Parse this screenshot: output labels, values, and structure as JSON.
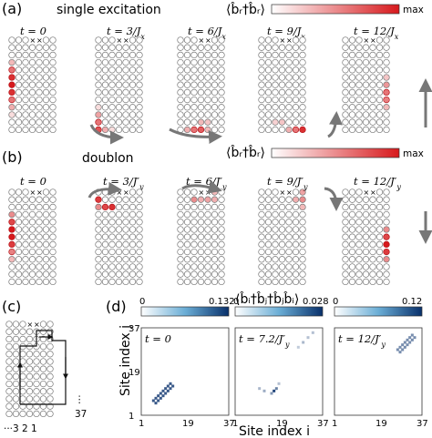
{
  "panels": {
    "a": {
      "label": "(a)",
      "title": "single excitation",
      "colorbar_label": "⟨b̂ᵣ†b̂ᵣ⟩",
      "colorbar_max": "max",
      "times": [
        "t = 0",
        "t = 3/J",
        "t = 6/J",
        "t = 9/J",
        "t = 12/J"
      ],
      "time_sub": "x"
    },
    "b": {
      "label": "(b)",
      "title": "doublon",
      "colorbar_label": "⟨b̂ᵣ†b̂ᵣ⟩",
      "colorbar_max": "max",
      "times": [
        "t = 0",
        "t = 3/J′",
        "t = 6/J′",
        "t = 9/J′",
        "t = 12/J′"
      ],
      "time_sub": "y"
    },
    "c": {
      "label": "(c)",
      "site_labels": [
        "···3 2 1",
        "⋮",
        "37"
      ]
    },
    "d": {
      "label": "(d)",
      "colorbar_label": "⟨b̂ᵢ†b̂ⱼ†b̂ⱼb̂ᵢ⟩",
      "colorbar_max": [
        "0.132",
        "0.028",
        "0.12"
      ],
      "colorbar_min": "0",
      "times": [
        "t = 0",
        "t = 7.2/J′",
        "t = 12/J′"
      ],
      "time_sub": [
        "",
        "y",
        "y"
      ],
      "xlabel": "Site index i",
      "ylabel": "Site index j",
      "xticks": [
        "1",
        "19",
        "37"
      ],
      "yticks": [
        "1",
        "19",
        "37"
      ]
    }
  },
  "colors": {
    "red": "#d7191c",
    "blue": "#08306b",
    "circle": "#555555"
  }
}
